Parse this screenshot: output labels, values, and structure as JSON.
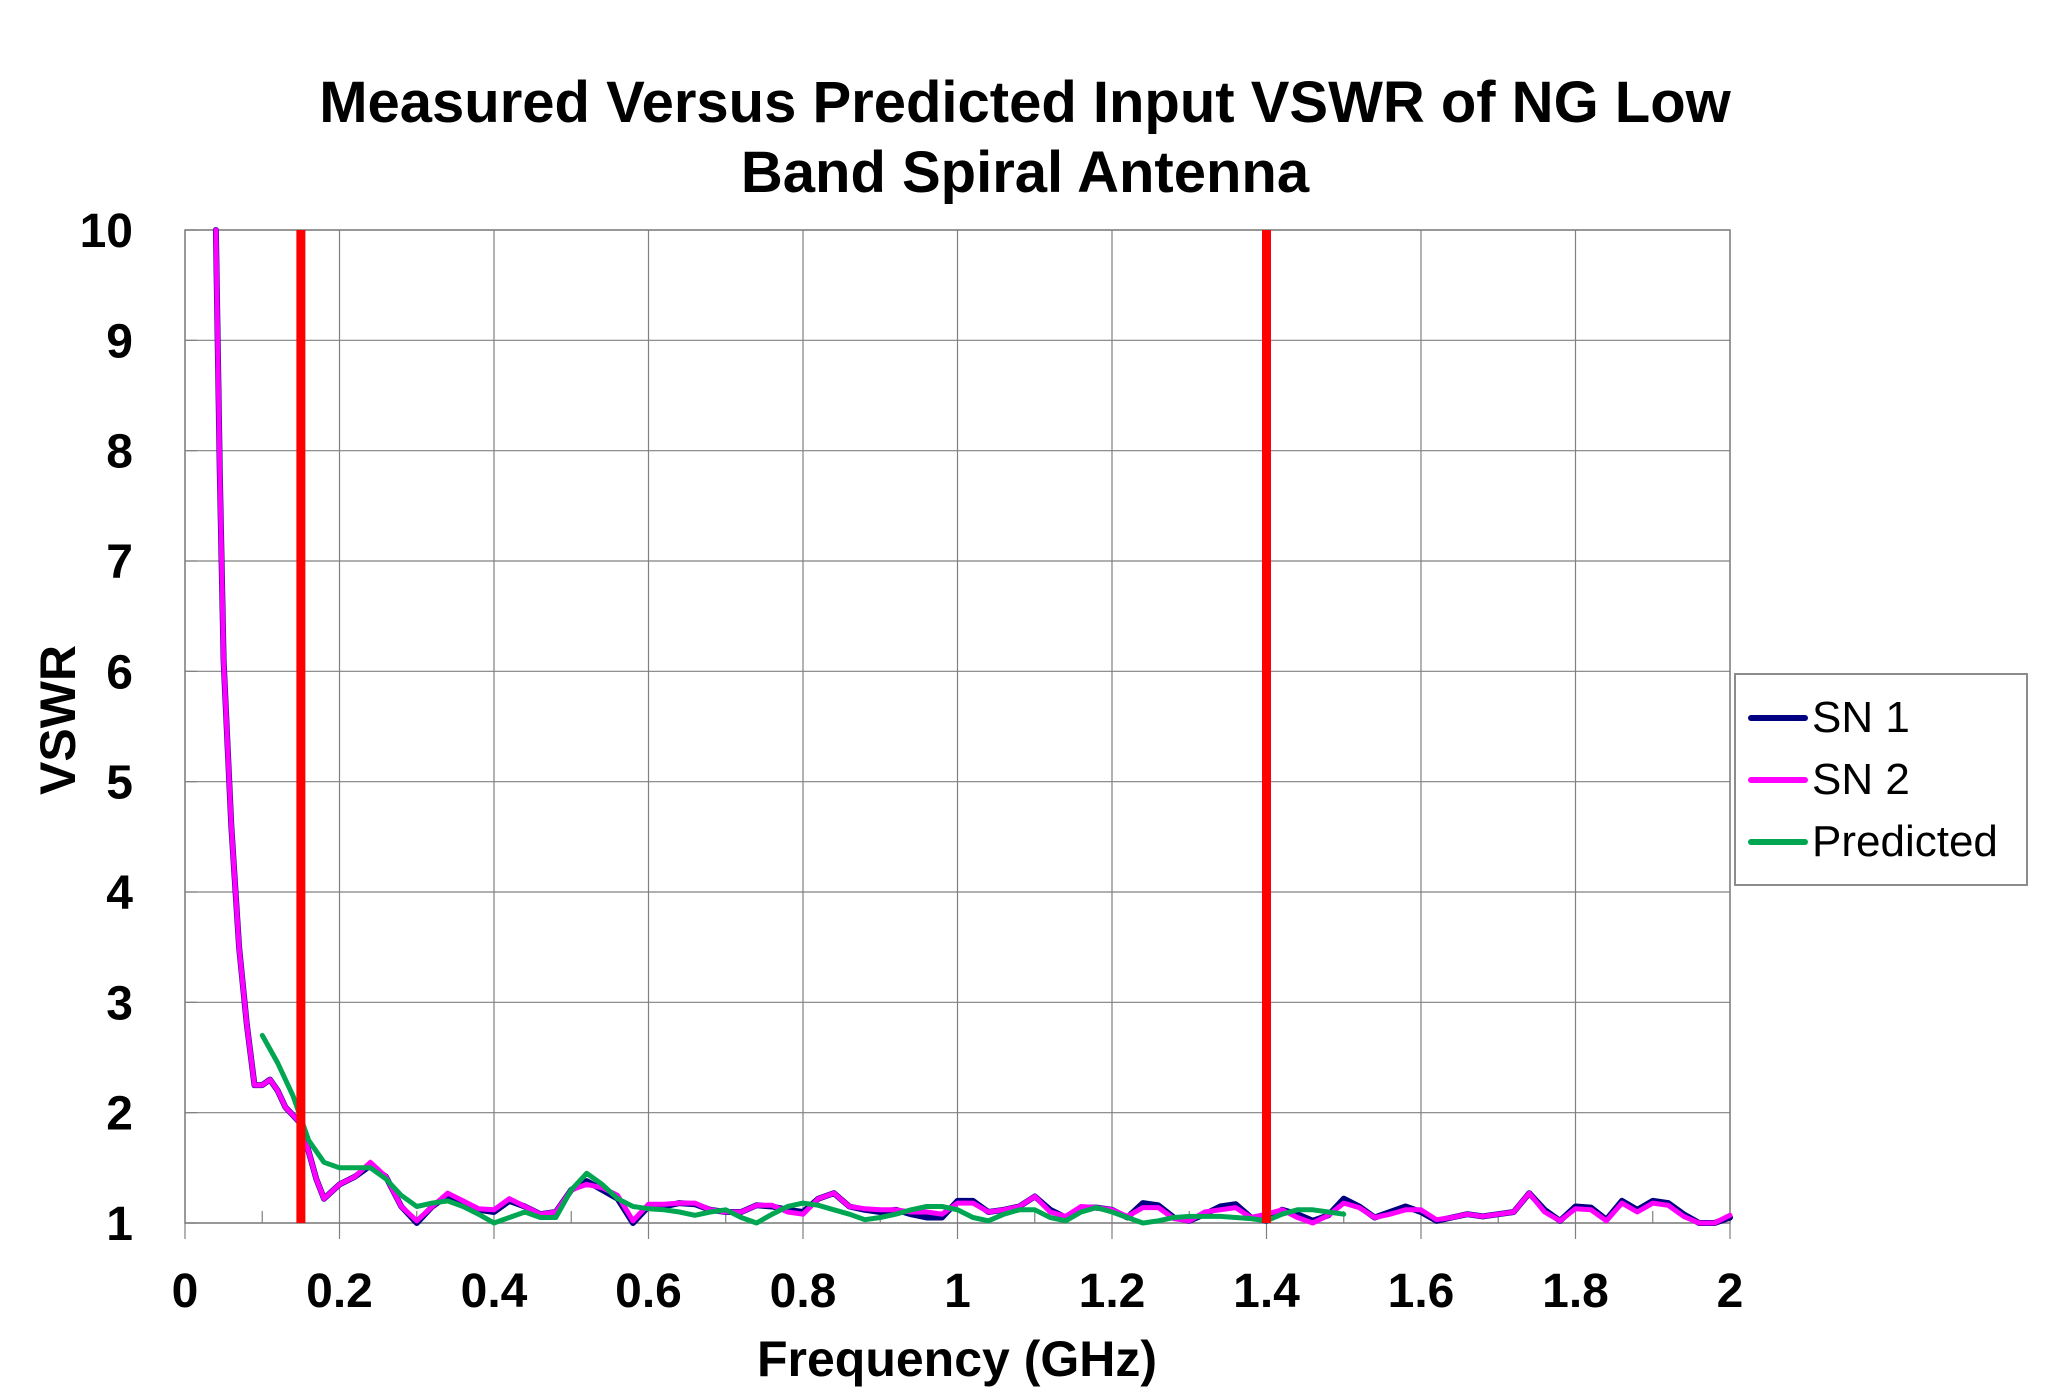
{
  "chart_data": {
    "type": "line",
    "title": "Measured Versus Predicted Input VSWR of NG Low Band Spiral Antenna",
    "title_lines": [
      "Measured Versus Predicted Input VSWR of NG Low",
      "Band Spiral Antenna"
    ],
    "xlabel": "Frequency (GHz)",
    "ylabel": "VSWR",
    "xlim": [
      0,
      2
    ],
    "ylim": [
      1,
      10
    ],
    "x_ticks": [
      "0",
      "0.2",
      "0.4",
      "0.6",
      "0.8",
      "1",
      "1.2",
      "1.4",
      "1.6",
      "1.8",
      "2"
    ],
    "x_tick_values": [
      0,
      0.2,
      0.4,
      0.6,
      0.8,
      1.0,
      1.2,
      1.4,
      1.6,
      1.8,
      2.0
    ],
    "y_ticks": [
      "1",
      "2",
      "3",
      "4",
      "5",
      "6",
      "7",
      "8",
      "9",
      "10"
    ],
    "y_tick_values": [
      1,
      2,
      3,
      4,
      5,
      6,
      7,
      8,
      9,
      10
    ],
    "grid": true,
    "legend_position": "right",
    "vertical_markers": [
      {
        "x": 0.15,
        "color": "#FF0000"
      },
      {
        "x": 1.4,
        "color": "#FF0000"
      }
    ],
    "series": [
      {
        "name": "SN 1",
        "color": "#000080",
        "x": [
          0.04,
          0.045,
          0.05,
          0.06,
          0.07,
          0.08,
          0.09,
          0.1,
          0.11,
          0.12,
          0.13,
          0.15,
          0.17,
          0.18,
          0.2,
          0.22,
          0.24,
          0.26,
          0.28,
          0.3,
          0.32,
          0.34,
          0.36,
          0.38,
          0.4,
          0.42,
          0.44,
          0.46,
          0.48,
          0.5,
          0.52,
          0.54,
          0.56,
          0.58,
          0.6,
          0.62,
          0.64,
          0.66,
          0.68,
          0.7,
          0.72,
          0.74,
          0.76,
          0.78,
          0.8,
          0.82,
          0.84,
          0.86,
          0.88,
          0.9,
          0.92,
          0.94,
          0.96,
          0.98,
          1.0,
          1.02,
          1.04,
          1.06,
          1.08,
          1.1,
          1.12,
          1.14,
          1.16,
          1.18,
          1.2,
          1.22,
          1.24,
          1.26,
          1.28,
          1.3,
          1.32,
          1.34,
          1.36,
          1.38,
          1.4,
          1.42,
          1.44,
          1.46,
          1.48,
          1.5,
          1.52,
          1.54,
          1.56,
          1.58,
          1.6,
          1.62,
          1.64,
          1.66,
          1.68,
          1.7,
          1.72,
          1.74,
          1.76,
          1.78,
          1.8,
          1.82,
          1.84,
          1.86,
          1.88,
          1.9,
          1.92,
          1.94,
          1.96,
          1.98,
          2.0
        ],
        "values": [
          10.0,
          7.8,
          6.1,
          4.6,
          3.5,
          2.8,
          2.25,
          2.25,
          2.3,
          2.2,
          2.05,
          1.9,
          1.4,
          1.22,
          1.35,
          1.42,
          1.52,
          1.42,
          1.15,
          1.0,
          1.15,
          1.25,
          1.18,
          1.12,
          1.1,
          1.2,
          1.15,
          1.08,
          1.1,
          1.3,
          1.38,
          1.3,
          1.22,
          1.0,
          1.15,
          1.15,
          1.18,
          1.17,
          1.12,
          1.1,
          1.1,
          1.16,
          1.15,
          1.12,
          1.1,
          1.22,
          1.27,
          1.15,
          1.12,
          1.1,
          1.12,
          1.08,
          1.05,
          1.05,
          1.2,
          1.2,
          1.1,
          1.12,
          1.15,
          1.24,
          1.12,
          1.05,
          1.14,
          1.14,
          1.12,
          1.05,
          1.18,
          1.16,
          1.05,
          1.02,
          1.08,
          1.15,
          1.17,
          1.05,
          1.02,
          1.12,
          1.08,
          1.02,
          1.07,
          1.22,
          1.15,
          1.05,
          1.1,
          1.15,
          1.1,
          1.02,
          1.05,
          1.08,
          1.06,
          1.08,
          1.1,
          1.27,
          1.12,
          1.02,
          1.15,
          1.14,
          1.03,
          1.2,
          1.12,
          1.2,
          1.18,
          1.08,
          1.0,
          1.0,
          1.05
        ]
      },
      {
        "name": "SN 2",
        "color": "#FF00FF",
        "x": [
          0.04,
          0.045,
          0.05,
          0.06,
          0.07,
          0.08,
          0.09,
          0.1,
          0.11,
          0.12,
          0.13,
          0.15,
          0.17,
          0.18,
          0.2,
          0.22,
          0.24,
          0.26,
          0.28,
          0.3,
          0.32,
          0.34,
          0.36,
          0.38,
          0.4,
          0.42,
          0.44,
          0.46,
          0.48,
          0.5,
          0.52,
          0.54,
          0.56,
          0.58,
          0.6,
          0.62,
          0.64,
          0.66,
          0.68,
          0.7,
          0.72,
          0.74,
          0.76,
          0.78,
          0.8,
          0.82,
          0.84,
          0.86,
          0.88,
          0.9,
          0.92,
          0.94,
          0.96,
          0.98,
          1.0,
          1.02,
          1.04,
          1.06,
          1.08,
          1.1,
          1.12,
          1.14,
          1.16,
          1.18,
          1.2,
          1.22,
          1.24,
          1.26,
          1.28,
          1.3,
          1.32,
          1.34,
          1.36,
          1.38,
          1.4,
          1.42,
          1.44,
          1.46,
          1.48,
          1.5,
          1.52,
          1.54,
          1.56,
          1.58,
          1.6,
          1.62,
          1.64,
          1.66,
          1.68,
          1.7,
          1.72,
          1.74,
          1.76,
          1.78,
          1.8,
          1.82,
          1.84,
          1.86,
          1.88,
          1.9,
          1.92,
          1.94,
          1.96,
          1.98,
          2.0
        ],
        "values": [
          10.0,
          7.8,
          6.1,
          4.6,
          3.5,
          2.8,
          2.25,
          2.25,
          2.3,
          2.2,
          2.05,
          1.9,
          1.4,
          1.22,
          1.35,
          1.42,
          1.55,
          1.42,
          1.15,
          1.02,
          1.15,
          1.27,
          1.2,
          1.13,
          1.12,
          1.22,
          1.15,
          1.08,
          1.1,
          1.3,
          1.35,
          1.32,
          1.25,
          1.02,
          1.17,
          1.17,
          1.18,
          1.18,
          1.12,
          1.1,
          1.1,
          1.16,
          1.16,
          1.1,
          1.08,
          1.22,
          1.27,
          1.15,
          1.13,
          1.12,
          1.12,
          1.1,
          1.1,
          1.08,
          1.18,
          1.18,
          1.1,
          1.12,
          1.15,
          1.24,
          1.1,
          1.06,
          1.15,
          1.14,
          1.12,
          1.06,
          1.14,
          1.14,
          1.04,
          1.02,
          1.1,
          1.12,
          1.14,
          1.05,
          1.08,
          1.12,
          1.05,
          1.0,
          1.07,
          1.18,
          1.14,
          1.05,
          1.08,
          1.12,
          1.12,
          1.03,
          1.05,
          1.08,
          1.06,
          1.08,
          1.1,
          1.27,
          1.1,
          1.02,
          1.13,
          1.12,
          1.02,
          1.18,
          1.1,
          1.18,
          1.16,
          1.06,
          1.0,
          1.0,
          1.07
        ]
      },
      {
        "name": "Predicted",
        "color": "#00A651",
        "x": [
          0.1,
          0.12,
          0.14,
          0.15,
          0.16,
          0.18,
          0.2,
          0.22,
          0.24,
          0.26,
          0.28,
          0.3,
          0.32,
          0.34,
          0.36,
          0.38,
          0.4,
          0.42,
          0.44,
          0.46,
          0.48,
          0.5,
          0.52,
          0.54,
          0.56,
          0.58,
          0.6,
          0.62,
          0.64,
          0.66,
          0.68,
          0.7,
          0.72,
          0.74,
          0.76,
          0.78,
          0.8,
          0.82,
          0.84,
          0.86,
          0.88,
          0.9,
          0.92,
          0.94,
          0.96,
          0.98,
          1.0,
          1.02,
          1.04,
          1.06,
          1.08,
          1.1,
          1.12,
          1.14,
          1.16,
          1.18,
          1.2,
          1.22,
          1.24,
          1.26,
          1.28,
          1.3,
          1.32,
          1.34,
          1.36,
          1.38,
          1.4,
          1.42,
          1.44,
          1.46,
          1.48,
          1.5
        ],
        "values": [
          2.7,
          2.45,
          2.15,
          1.95,
          1.75,
          1.55,
          1.5,
          1.5,
          1.5,
          1.4,
          1.25,
          1.15,
          1.18,
          1.2,
          1.15,
          1.08,
          1.0,
          1.05,
          1.1,
          1.05,
          1.05,
          1.3,
          1.45,
          1.35,
          1.22,
          1.15,
          1.13,
          1.12,
          1.1,
          1.07,
          1.1,
          1.12,
          1.05,
          1.0,
          1.08,
          1.15,
          1.18,
          1.16,
          1.12,
          1.08,
          1.03,
          1.05,
          1.08,
          1.12,
          1.15,
          1.15,
          1.12,
          1.05,
          1.02,
          1.08,
          1.12,
          1.12,
          1.05,
          1.02,
          1.1,
          1.14,
          1.1,
          1.05,
          1.0,
          1.02,
          1.05,
          1.06,
          1.06,
          1.06,
          1.05,
          1.04,
          1.02,
          1.08,
          1.12,
          1.12,
          1.1,
          1.08
        ]
      }
    ]
  },
  "legend": {
    "items": [
      {
        "label": "SN 1",
        "color": "#000080"
      },
      {
        "label": "SN 2",
        "color": "#FF00FF"
      },
      {
        "label": "Predicted",
        "color": "#00A651"
      }
    ]
  }
}
